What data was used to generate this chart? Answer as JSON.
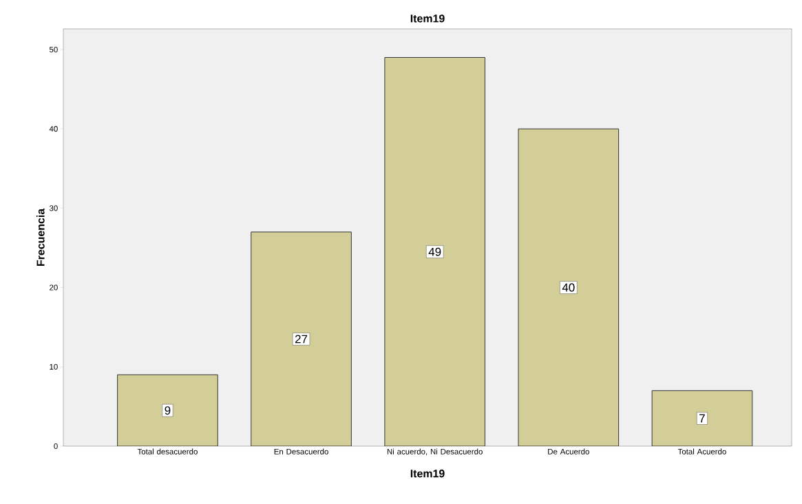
{
  "chart_data": {
    "type": "bar",
    "title": "Item19",
    "xlabel": "Item19",
    "ylabel": "Frecuencia",
    "categories": [
      "Total desacuerdo",
      "En Desacuerdo",
      "Ni acuerdo, Ni Desacuerdo",
      "De Acuerdo",
      "Total Acuerdo"
    ],
    "values": [
      9,
      27,
      49,
      40,
      7
    ],
    "color": "#d3ce97",
    "ylim": [
      0,
      52.6
    ],
    "yticks": [
      0,
      10,
      20,
      30,
      40,
      50
    ],
    "grid": false,
    "data_labels": true
  }
}
